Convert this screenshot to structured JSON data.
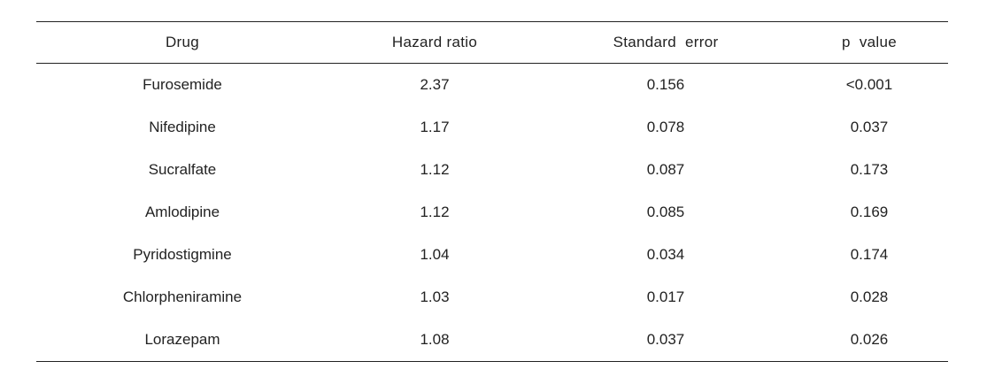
{
  "table": {
    "headers": [
      "Drug",
      "Hazard ratio",
      "Standard  error",
      "p  value"
    ],
    "rows": [
      [
        "Furosemide",
        "2.37",
        "0.156",
        "<0.001"
      ],
      [
        "Nifedipine",
        "1.17",
        "0.078",
        "0.037"
      ],
      [
        "Sucralfate",
        "1.12",
        "0.087",
        "0.173"
      ],
      [
        "Amlodipine",
        "1.12",
        "0.085",
        "0.169"
      ],
      [
        "Pyridostigmine",
        "1.04",
        "0.034",
        "0.174"
      ],
      [
        "Chlorpheniramine",
        "1.03",
        "0.017",
        "0.028"
      ],
      [
        "Lorazepam",
        "1.08",
        "0.037",
        "0.026"
      ]
    ]
  }
}
